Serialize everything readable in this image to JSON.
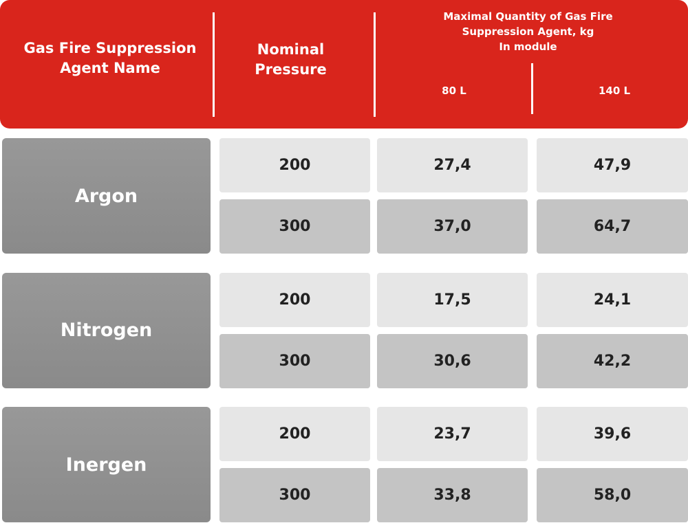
{
  "header": {
    "agent_name": "Gas Fire Suppression Agent Name",
    "nominal_pressure": "Nominal Pressure",
    "max_quantity": "Maximal Quantity of Gas Fire Suppression Agent, kg",
    "module_note": "In module",
    "volumes": [
      "80 L",
      "140 L"
    ]
  },
  "groups": [
    {
      "name": "Argon",
      "rows": [
        [
          "200",
          "27,4",
          "47,9"
        ],
        [
          "300",
          "37,0",
          "64,7"
        ]
      ]
    },
    {
      "name": "Nitrogen",
      "rows": [
        [
          "200",
          "17,5",
          "24,1"
        ],
        [
          "300",
          "30,6",
          "42,2"
        ]
      ]
    },
    {
      "name": "Inergen",
      "rows": [
        [
          "200",
          "23,7",
          "39,6"
        ],
        [
          "300",
          "33,8",
          "58,0"
        ]
      ]
    }
  ]
}
